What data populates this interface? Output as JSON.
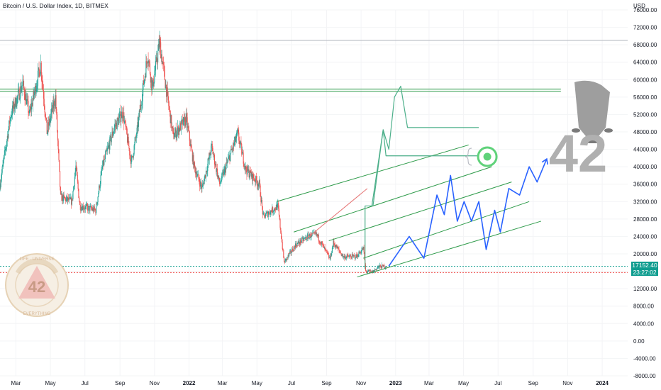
{
  "header": {
    "title": "Bitcoin / U.S. Dollar Index, 1D, BITMEX",
    "currency": "USD"
  },
  "price_badge": {
    "price": "17152.40",
    "countdown": "23:27:02",
    "color": "#0f9d8f"
  },
  "watermark": {
    "text": "42",
    "icon": "rocket-icon"
  },
  "seal": {
    "text": "42",
    "ring_top": "LIFE · UNIVERSE",
    "ring_bottom": "EVERYTHING"
  },
  "colors": {
    "up": "#26a69a",
    "down": "#ef5350",
    "channel": "#2e9b4a",
    "projection": "#2962ff",
    "target_line": "#4caf8a",
    "diagonal": "#e57373"
  },
  "chart_data": {
    "type": "candlestick",
    "title": "Bitcoin / U.S. Dollar Index, 1D, BITMEX",
    "ylabel": "USD",
    "ylim": [
      -8000,
      76000
    ],
    "y_ticks": [
      "76000.00",
      "72000.00",
      "68000.00",
      "64000.00",
      "60000.00",
      "56000.00",
      "52000.00",
      "48000.00",
      "44000.00",
      "40000.00",
      "36000.00",
      "32000.00",
      "28000.00",
      "24000.00",
      "20000.00",
      "16000.00",
      "12000.00",
      "8000.00",
      "4000.00",
      "0.00",
      "-4000.00",
      "-8000.00"
    ],
    "x_ticks": [
      {
        "label": "Mar",
        "date": "2021-03-01"
      },
      {
        "label": "May",
        "date": "2021-05-01"
      },
      {
        "label": "Jul",
        "date": "2021-07-01"
      },
      {
        "label": "Sep",
        "date": "2021-09-01"
      },
      {
        "label": "Nov",
        "date": "2021-11-01"
      },
      {
        "label": "2022",
        "date": "2022-01-01",
        "bold": true
      },
      {
        "label": "Mar",
        "date": "2022-03-01"
      },
      {
        "label": "May",
        "date": "2022-05-01"
      },
      {
        "label": "Jul",
        "date": "2022-07-01"
      },
      {
        "label": "Sep",
        "date": "2022-09-01"
      },
      {
        "label": "Nov",
        "date": "2022-11-01"
      },
      {
        "label": "2023",
        "date": "2023-01-01",
        "bold": true
      },
      {
        "label": "Mar",
        "date": "2023-03-01"
      },
      {
        "label": "May",
        "date": "2023-05-01"
      },
      {
        "label": "Jul",
        "date": "2023-07-01"
      },
      {
        "label": "Sep",
        "date": "2023-09-01"
      },
      {
        "label": "Nov",
        "date": "2023-11-01"
      },
      {
        "label": "2024",
        "date": "2024-01-01",
        "bold": true
      }
    ],
    "xlim": [
      "2021-02-01",
      "2024-02-15"
    ],
    "last_price": 17152.4,
    "price_path": [
      [
        "2021-02-01",
        36000
      ],
      [
        "2021-02-20",
        52000
      ],
      [
        "2021-03-13",
        59000
      ],
      [
        "2021-03-25",
        52000
      ],
      [
        "2021-04-14",
        63500
      ],
      [
        "2021-04-25",
        48000
      ],
      [
        "2021-05-10",
        56000
      ],
      [
        "2021-05-19",
        33000
      ],
      [
        "2021-06-08",
        32000
      ],
      [
        "2021-06-15",
        40000
      ],
      [
        "2021-06-22",
        31000
      ],
      [
        "2021-07-20",
        30000
      ],
      [
        "2021-08-01",
        40000
      ],
      [
        "2021-08-22",
        49000
      ],
      [
        "2021-09-06",
        52500
      ],
      [
        "2021-09-21",
        41000
      ],
      [
        "2021-10-01",
        48000
      ],
      [
        "2021-10-20",
        66000
      ],
      [
        "2021-10-28",
        58000
      ],
      [
        "2021-11-10",
        68500
      ],
      [
        "2021-11-26",
        54000
      ],
      [
        "2021-12-04",
        47000
      ],
      [
        "2021-12-27",
        51000
      ],
      [
        "2022-01-10",
        40000
      ],
      [
        "2022-01-24",
        35000
      ],
      [
        "2022-02-10",
        44500
      ],
      [
        "2022-02-24",
        36000
      ],
      [
        "2022-03-28",
        47500
      ],
      [
        "2022-04-11",
        39500
      ],
      [
        "2022-05-05",
        36000
      ],
      [
        "2022-05-12",
        28500
      ],
      [
        "2022-06-07",
        31000
      ],
      [
        "2022-06-18",
        18000
      ],
      [
        "2022-07-08",
        22000
      ],
      [
        "2022-07-30",
        24000
      ],
      [
        "2022-08-14",
        24500
      ],
      [
        "2022-09-07",
        18800
      ],
      [
        "2022-09-13",
        22500
      ],
      [
        "2022-10-01",
        19300
      ],
      [
        "2022-10-24",
        19400
      ],
      [
        "2022-11-05",
        21300
      ],
      [
        "2022-11-09",
        16000
      ],
      [
        "2022-11-21",
        15800
      ],
      [
        "2022-12-01",
        17000
      ],
      [
        "2022-12-15",
        17152
      ]
    ],
    "horizontal_levels": [
      {
        "y": 69000,
        "from": "2021-02-01",
        "to": "2024-02-15",
        "color": "#b2b5be"
      },
      {
        "y": 57800,
        "from": "2021-02-01",
        "to": "2023-10-20",
        "color": "#2e9b4a"
      },
      {
        "y": 57300,
        "from": "2021-02-01",
        "to": "2023-10-20",
        "color": "#2e9b4a"
      },
      {
        "y": 17152.4,
        "from": "2021-02-01",
        "to": "2024-02-15",
        "color": "#26a69a"
      },
      {
        "y": 15700,
        "from": "2021-02-01",
        "to": "2024-02-15",
        "color": "#ef5350"
      }
    ],
    "channel_lines": [
      [
        [
          "2022-06-05",
          32000
        ],
        [
          "2023-05-10",
          45000
        ]
      ],
      [
        [
          "2022-07-05",
          25000
        ],
        [
          "2023-06-20",
          40000
        ]
      ],
      [
        [
          "2022-09-05",
          23000
        ],
        [
          "2023-07-25",
          36500
        ]
      ],
      [
        [
          "2022-11-05",
          19000
        ],
        [
          "2023-08-25",
          32000
        ]
      ],
      [
        [
          "2022-10-25",
          14700
        ],
        [
          "2023-09-15",
          27500
        ]
      ]
    ],
    "diagonal_line": [
      [
        "2022-06-25",
        20000
      ],
      [
        "2022-11-12",
        35000
      ]
    ],
    "projection_path": [
      [
        "2022-12-20",
        17200
      ],
      [
        "2023-01-25",
        24000
      ],
      [
        "2023-02-20",
        19000
      ],
      [
        "2023-03-15",
        33500
      ],
      [
        "2023-03-28",
        29000
      ],
      [
        "2023-04-08",
        38000
      ],
      [
        "2023-04-20",
        27500
      ],
      [
        "2023-05-02",
        32000
      ],
      [
        "2023-05-15",
        27500
      ],
      [
        "2023-05-28",
        32000
      ],
      [
        "2023-06-10",
        21000
      ],
      [
        "2023-06-25",
        30000
      ],
      [
        "2023-07-05",
        25000
      ],
      [
        "2023-07-20",
        35000
      ],
      [
        "2023-08-08",
        33500
      ],
      [
        "2023-08-25",
        40000
      ],
      [
        "2023-09-08",
        36500
      ],
      [
        "2023-09-25",
        41800
      ]
    ],
    "target_path": [
      [
        "2022-11-08",
        16500
      ],
      [
        "2022-11-08",
        31000
      ],
      [
        "2022-11-20",
        31000
      ],
      [
        "2022-12-10",
        48500
      ],
      [
        "2022-12-15",
        42500
      ],
      [
        "2023-05-28",
        42500
      ]
    ],
    "target_path2": [
      [
        "2022-11-22",
        31000
      ],
      [
        "2022-12-10",
        48500
      ],
      [
        "2022-12-20",
        44000
      ],
      [
        "2022-12-30",
        56000
      ],
      [
        "2023-01-10",
        58500
      ],
      [
        "2023-01-22",
        49000
      ],
      [
        "2023-05-28",
        49000
      ]
    ],
    "target_marker": {
      "date": "2023-06-12",
      "y": 42300
    }
  }
}
